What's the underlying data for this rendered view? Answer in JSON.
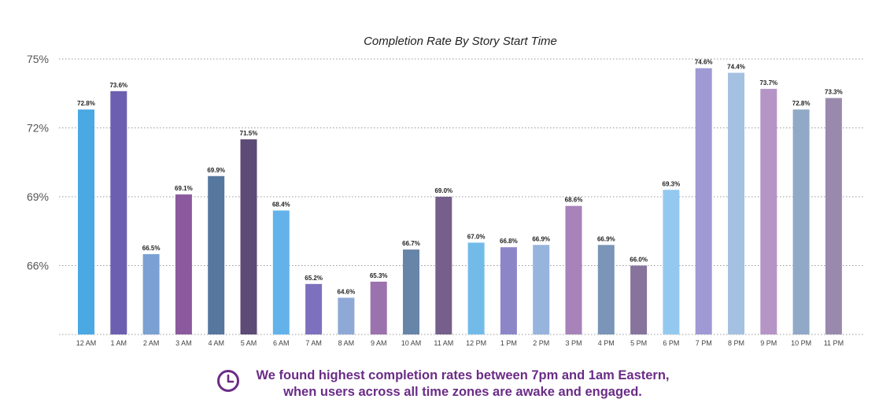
{
  "chart_data": {
    "type": "bar",
    "title": "Completion Rate By Story Start Time",
    "xlabel": "",
    "ylabel": "",
    "ylim": [
      63,
      75
    ],
    "yticks": [
      66,
      69,
      72,
      75
    ],
    "ytick_labels": [
      "66%",
      "69%",
      "72%",
      "75%"
    ],
    "grid": "horizontal dotted",
    "categories": [
      "12 AM",
      "1 AM",
      "2 AM",
      "3 AM",
      "4 AM",
      "5 AM",
      "6 AM",
      "7 AM",
      "8 AM",
      "9 AM",
      "10 AM",
      "11 AM",
      "12 PM",
      "1 PM",
      "2 PM",
      "3 PM",
      "4 PM",
      "5 PM",
      "6 PM",
      "7 PM",
      "8 PM",
      "9 PM",
      "10 PM",
      "11 PM"
    ],
    "values": [
      72.8,
      73.6,
      66.5,
      69.1,
      69.9,
      71.5,
      68.4,
      65.2,
      64.6,
      65.3,
      66.7,
      69.0,
      67.0,
      66.8,
      66.9,
      68.6,
      66.9,
      66.0,
      69.3,
      74.6,
      74.4,
      73.7,
      72.8,
      73.3
    ],
    "value_labels": [
      "72.8%",
      "73.6%",
      "66.5%",
      "69.1%",
      "69.9%",
      "71.5%",
      "68.4%",
      "65.2%",
      "64.6%",
      "65.3%",
      "66.7%",
      "69.0%",
      "67.0%",
      "66.8%",
      "66.9%",
      "68.6%",
      "66.9%",
      "66.0%",
      "69.3%",
      "74.6%",
      "74.4%",
      "73.7%",
      "72.8%",
      "73.3%"
    ],
    "colors": [
      "#4aa8e3",
      "#6d5fb0",
      "#7aa1d2",
      "#8b5a9e",
      "#56779e",
      "#5d4a76",
      "#63b3ea",
      "#7d71bf",
      "#8ea9d6",
      "#9b72ad",
      "#6785a8",
      "#765f8a",
      "#72bbe9",
      "#8c86c9",
      "#96b4dc",
      "#a783b9",
      "#7a95b7",
      "#86749d",
      "#94c9ef",
      "#9f9ad4",
      "#a5c1e1",
      "#b595c6",
      "#91a9c6",
      "#998aad"
    ]
  },
  "footer": {
    "line1": "We found highest completion rates between 7pm and 1am Eastern,",
    "line2": "when users across all time zones are awake and engaged.",
    "icon": "clock-icon",
    "color": "#6a2c86"
  }
}
